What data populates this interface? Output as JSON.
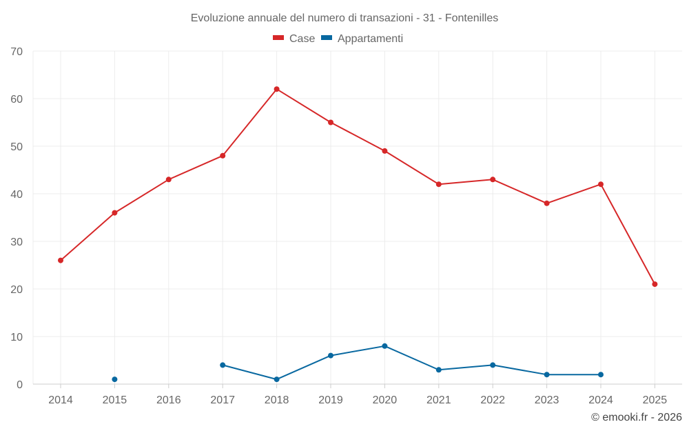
{
  "chart_data": {
    "type": "line",
    "title": "Evoluzione annuale del numero di transazioni - 31 - Fontenilles",
    "categories": [
      "2014",
      "2015",
      "2016",
      "2017",
      "2018",
      "2019",
      "2020",
      "2021",
      "2022",
      "2023",
      "2024",
      "2025"
    ],
    "ylim": [
      0,
      70
    ],
    "yticks": [
      0,
      10,
      20,
      30,
      40,
      50,
      60,
      70
    ],
    "xlabel": "",
    "ylabel": "",
    "grid": true,
    "legend_position": "top-center",
    "series": [
      {
        "name": "Case",
        "color": "#d62728",
        "values": [
          26,
          36,
          43,
          48,
          62,
          55,
          49,
          42,
          43,
          38,
          42,
          21
        ]
      },
      {
        "name": "Appartamenti",
        "color": "#0868a0",
        "values": [
          null,
          1,
          null,
          4,
          1,
          6,
          8,
          3,
          4,
          2,
          2,
          null
        ]
      }
    ]
  },
  "credit": "© emooki.fr - 2026"
}
